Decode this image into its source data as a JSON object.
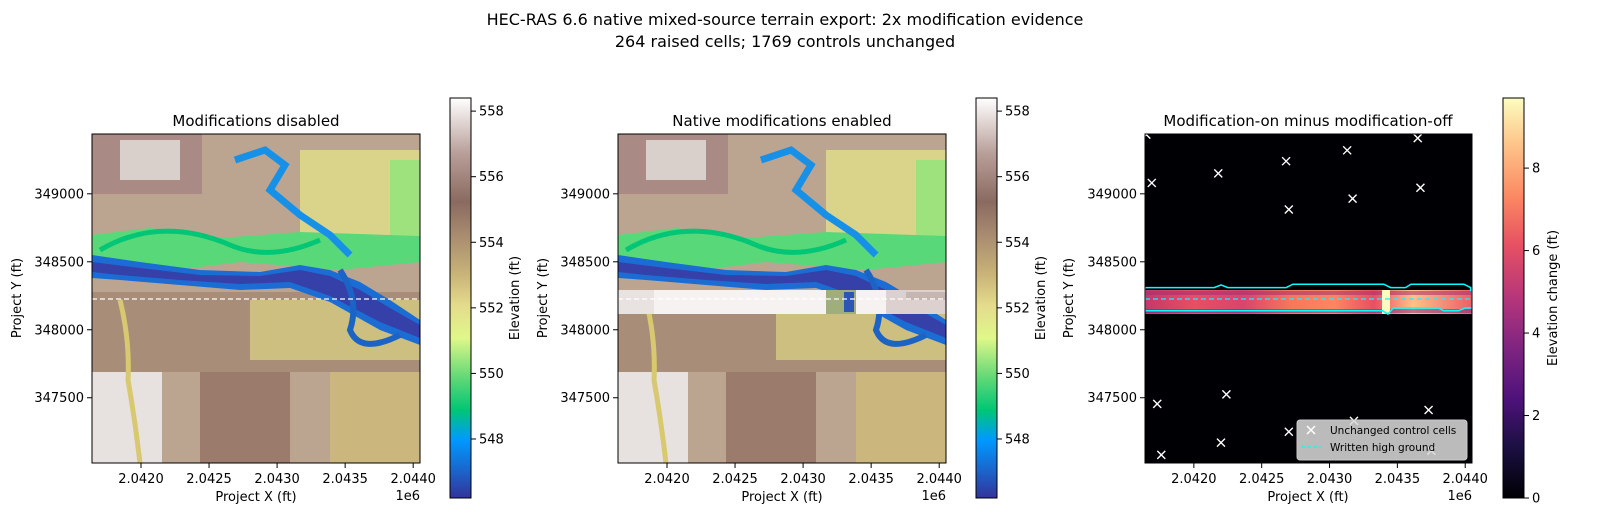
{
  "figure": {
    "title_line1": "HEC-RAS 6.6 native mixed-source terrain export: 2x modification evidence",
    "title_line2": "264 raised cells; 1769 controls unchanged"
  },
  "chart_data": [
    {
      "type": "heatmap",
      "title": "Modifications disabled",
      "xlabel": "Project X (ft)",
      "ylabel": "Project Y (ft)",
      "x_offset_label": "1e6",
      "xlim": [
        2.04164,
        2.04405
      ],
      "ylim": [
        347020,
        349440
      ],
      "xticks": [
        2.042,
        2.0425,
        2.043,
        2.0435,
        2.044
      ],
      "xtick_labels": [
        "2.0420",
        "2.0425",
        "2.0430",
        "2.0435",
        "2.0440"
      ],
      "yticks": [
        347500,
        348000,
        348500,
        349000
      ],
      "ytick_labels": [
        "347500",
        "348000",
        "348500",
        "349000"
      ],
      "colorbar": {
        "label": "Elevation (ft)",
        "colormap": "terrain",
        "range": [
          546.2,
          558.4
        ],
        "ticks": [
          548,
          550,
          552,
          554,
          556,
          558
        ],
        "tick_labels": [
          "548",
          "550",
          "552",
          "554",
          "556",
          "558"
        ]
      },
      "profile_line_y": 348230,
      "modifications_enabled": false
    },
    {
      "type": "heatmap",
      "title": "Native modifications enabled",
      "xlabel": "Project X (ft)",
      "ylabel": "Project Y (ft)",
      "x_offset_label": "1e6",
      "xlim": [
        2.04164,
        2.04405
      ],
      "ylim": [
        347020,
        349440
      ],
      "xticks": [
        2.042,
        2.0425,
        2.043,
        2.0435,
        2.044
      ],
      "xtick_labels": [
        "2.0420",
        "2.0425",
        "2.0430",
        "2.0435",
        "2.0440"
      ],
      "yticks": [
        347500,
        348000,
        348500,
        349000
      ],
      "ytick_labels": [
        "347500",
        "348000",
        "348500",
        "349000"
      ],
      "colorbar": {
        "label": "Elevation (ft)",
        "colormap": "terrain",
        "range": [
          546.2,
          558.4
        ],
        "ticks": [
          548,
          550,
          552,
          554,
          556,
          558
        ],
        "tick_labels": [
          "548",
          "550",
          "552",
          "554",
          "556",
          "558"
        ]
      },
      "profile_line_y": 348230,
      "modifications_enabled": true,
      "raised_band_y": [
        348140,
        348310
      ]
    },
    {
      "type": "heatmap",
      "title": "Modification-on minus modification-off",
      "xlabel": "Project X (ft)",
      "ylabel": "Project Y (ft)",
      "x_offset_label": "1e6",
      "xlim": [
        2.04164,
        2.04405
      ],
      "ylim": [
        347020,
        349440
      ],
      "xticks": [
        2.042,
        2.0425,
        2.043,
        2.0435,
        2.044
      ],
      "xtick_labels": [
        "2.0420",
        "2.0425",
        "2.0430",
        "2.0435",
        "2.0440"
      ],
      "yticks": [
        347500,
        348000,
        348500,
        349000
      ],
      "ytick_labels": [
        "347500",
        "348000",
        "348500",
        "349000"
      ],
      "colorbar": {
        "label": "Elevation change (ft)",
        "colormap": "magma",
        "range": [
          0,
          9.7
        ],
        "ticks": [
          0,
          2,
          4,
          6,
          8
        ],
        "tick_labels": [
          "0",
          "2",
          "4",
          "6",
          "8"
        ]
      },
      "raised_band_y": [
        348140,
        348310
      ],
      "high_ground_outline": [
        [
          2.04164,
          348310
        ],
        [
          2.04215,
          348310
        ],
        [
          2.0422,
          348330
        ],
        [
          2.04225,
          348310
        ],
        [
          2.04268,
          348310
        ],
        [
          2.04273,
          348335
        ],
        [
          2.0434,
          348335
        ],
        [
          2.04345,
          348310
        ],
        [
          2.04356,
          348310
        ],
        [
          2.0436,
          348335
        ],
        [
          2.04399,
          348335
        ],
        [
          2.04404,
          348310
        ],
        [
          2.04404,
          348290
        ],
        [
          2.04405,
          348290
        ],
        [
          2.04405,
          348160
        ],
        [
          2.044,
          348160
        ],
        [
          2.04395,
          348140
        ],
        [
          2.04384,
          348140
        ],
        [
          2.0438,
          348160
        ],
        [
          2.04347,
          348160
        ],
        [
          2.04343,
          348115
        ],
        [
          2.04339,
          348140
        ],
        [
          2.04164,
          348140
        ]
      ],
      "control_points": {
        "x": [
          2.04165,
          2.04169,
          2.04218,
          2.04268,
          2.04313,
          2.04365,
          2.04367,
          2.04317,
          2.0427,
          2.04173,
          2.04224,
          2.0422,
          2.0427,
          2.04318,
          2.04373,
          2.04375,
          2.04176
        ],
        "y": [
          349435,
          349080,
          349150,
          349240,
          349320,
          349410,
          349045,
          348965,
          348885,
          347455,
          347525,
          347170,
          347250,
          347330,
          347410,
          347110,
          347080
        ]
      },
      "legend": {
        "position": "lower-right",
        "entries": [
          "Unchanged control cells",
          "Written high ground"
        ]
      }
    }
  ]
}
